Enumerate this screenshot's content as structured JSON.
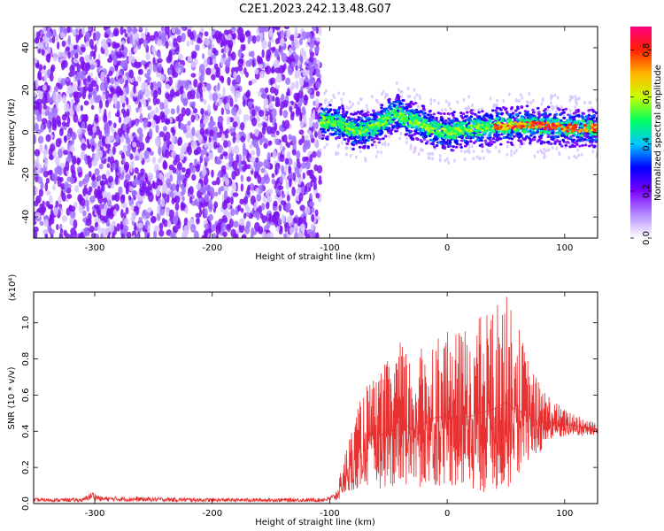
{
  "title": "C2E1.2023.242.13.48.G07",
  "colors": {
    "snr_line": "#e83232",
    "axis": "#000000",
    "spectrogram_bg": "#ffffff"
  },
  "chart_data": [
    {
      "type": "heatmap",
      "panel": "spectrogram",
      "xlabel": "Height of straight line (km)",
      "ylabel": "Frequency (Hz)",
      "xlim": [
        -352,
        128
      ],
      "ylim": [
        -50,
        50
      ],
      "xticks": [
        -300,
        -200,
        -100,
        0,
        100
      ],
      "xtick_labels": [
        "-300",
        "-200",
        "-100",
        "0",
        "100"
      ],
      "yticks": [
        -40,
        -20,
        0,
        20,
        40
      ],
      "ytick_labels": [
        "-40",
        "-20",
        "0",
        "20",
        "40"
      ],
      "noise_region_x": [
        -352,
        -108
      ],
      "signal_center_hz": [
        [
          -108,
          6
        ],
        [
          -100,
          5
        ],
        [
          -90,
          4
        ],
        [
          -80,
          1
        ],
        [
          -70,
          1
        ],
        [
          -60,
          3
        ],
        [
          -50,
          7
        ],
        [
          -42,
          9
        ],
        [
          -35,
          6
        ],
        [
          -25,
          5
        ],
        [
          -15,
          2
        ],
        [
          -5,
          0.5
        ],
        [
          0,
          0
        ],
        [
          10,
          1
        ],
        [
          20,
          2
        ],
        [
          30,
          2
        ],
        [
          40,
          3
        ],
        [
          50,
          3
        ],
        [
          60,
          3
        ],
        [
          70,
          3.5
        ],
        [
          80,
          3
        ],
        [
          90,
          3
        ],
        [
          100,
          2
        ],
        [
          110,
          2
        ],
        [
          128,
          2
        ]
      ],
      "colorbar": {
        "label": "Normalized spectral amplitude",
        "range": [
          0,
          0.9
        ],
        "ticks": [
          0,
          0.2,
          0.4,
          0.6,
          0.8
        ],
        "tick_labels": [
          "0.0",
          "0.2",
          "0.4",
          "0.6",
          "0.8"
        ],
        "colormap": [
          "#ffffff",
          "#b48cff",
          "#7a00ff",
          "#0000ff",
          "#00c8ff",
          "#00ff60",
          "#c8ff00",
          "#ffb400",
          "#ff2000",
          "#ff0080"
        ]
      },
      "grid": false
    },
    {
      "type": "line",
      "panel": "snr",
      "xlabel": "Height of straight line (km)",
      "ylabel": "SNR (10 * v/v)",
      "y_multiplier": "(x10⁴)",
      "xlim": [
        -352,
        128
      ],
      "ylim": [
        0,
        1.17
      ],
      "xticks": [
        -300,
        -200,
        -100,
        0,
        100
      ],
      "xtick_labels": [
        "-300",
        "-200",
        "-100",
        "0",
        "100"
      ],
      "yticks": [
        0,
        0.2,
        0.4,
        0.6,
        0.8,
        1.0
      ],
      "ytick_labels": [
        "0.0",
        "0.2",
        "0.4",
        "0.6",
        "0.8",
        "1.0"
      ],
      "series": [
        {
          "color": "#e83232",
          "envelope_upper": [
            [
              -352,
              0.03
            ],
            [
              -310,
              0.03
            ],
            [
              -302,
              0.07
            ],
            [
              -295,
              0.04
            ],
            [
              -200,
              0.03
            ],
            [
              -110,
              0.03
            ],
            [
              -100,
              0.04
            ],
            [
              -95,
              0.06
            ],
            [
              -90,
              0.2
            ],
            [
              -80,
              0.45
            ],
            [
              -70,
              0.65
            ],
            [
              -60,
              0.7
            ],
            [
              -50,
              0.8
            ],
            [
              -40,
              0.9
            ],
            [
              -30,
              0.8
            ],
            [
              -20,
              0.88
            ],
            [
              -10,
              0.95
            ],
            [
              0,
              0.95
            ],
            [
              10,
              0.95
            ],
            [
              20,
              1.0
            ],
            [
              30,
              1.05
            ],
            [
              40,
              1.1
            ],
            [
              50,
              1.16
            ],
            [
              60,
              1.0
            ],
            [
              70,
              0.78
            ],
            [
              80,
              0.65
            ],
            [
              90,
              0.58
            ],
            [
              100,
              0.52
            ],
            [
              110,
              0.5
            ],
            [
              120,
              0.47
            ],
            [
              128,
              0.45
            ]
          ],
          "envelope_lower": [
            [
              -352,
              0.0
            ],
            [
              -100,
              0.0
            ],
            [
              -92,
              0.02
            ],
            [
              -85,
              0.05
            ],
            [
              -75,
              0.08
            ],
            [
              -60,
              0.08
            ],
            [
              -40,
              0.1
            ],
            [
              -20,
              0.08
            ],
            [
              0,
              0.1
            ],
            [
              20,
              0.06
            ],
            [
              40,
              0.05
            ],
            [
              55,
              0.08
            ],
            [
              70,
              0.22
            ],
            [
              85,
              0.32
            ],
            [
              100,
              0.37
            ],
            [
              115,
              0.37
            ],
            [
              128,
              0.38
            ]
          ]
        }
      ],
      "grid": false
    }
  ]
}
